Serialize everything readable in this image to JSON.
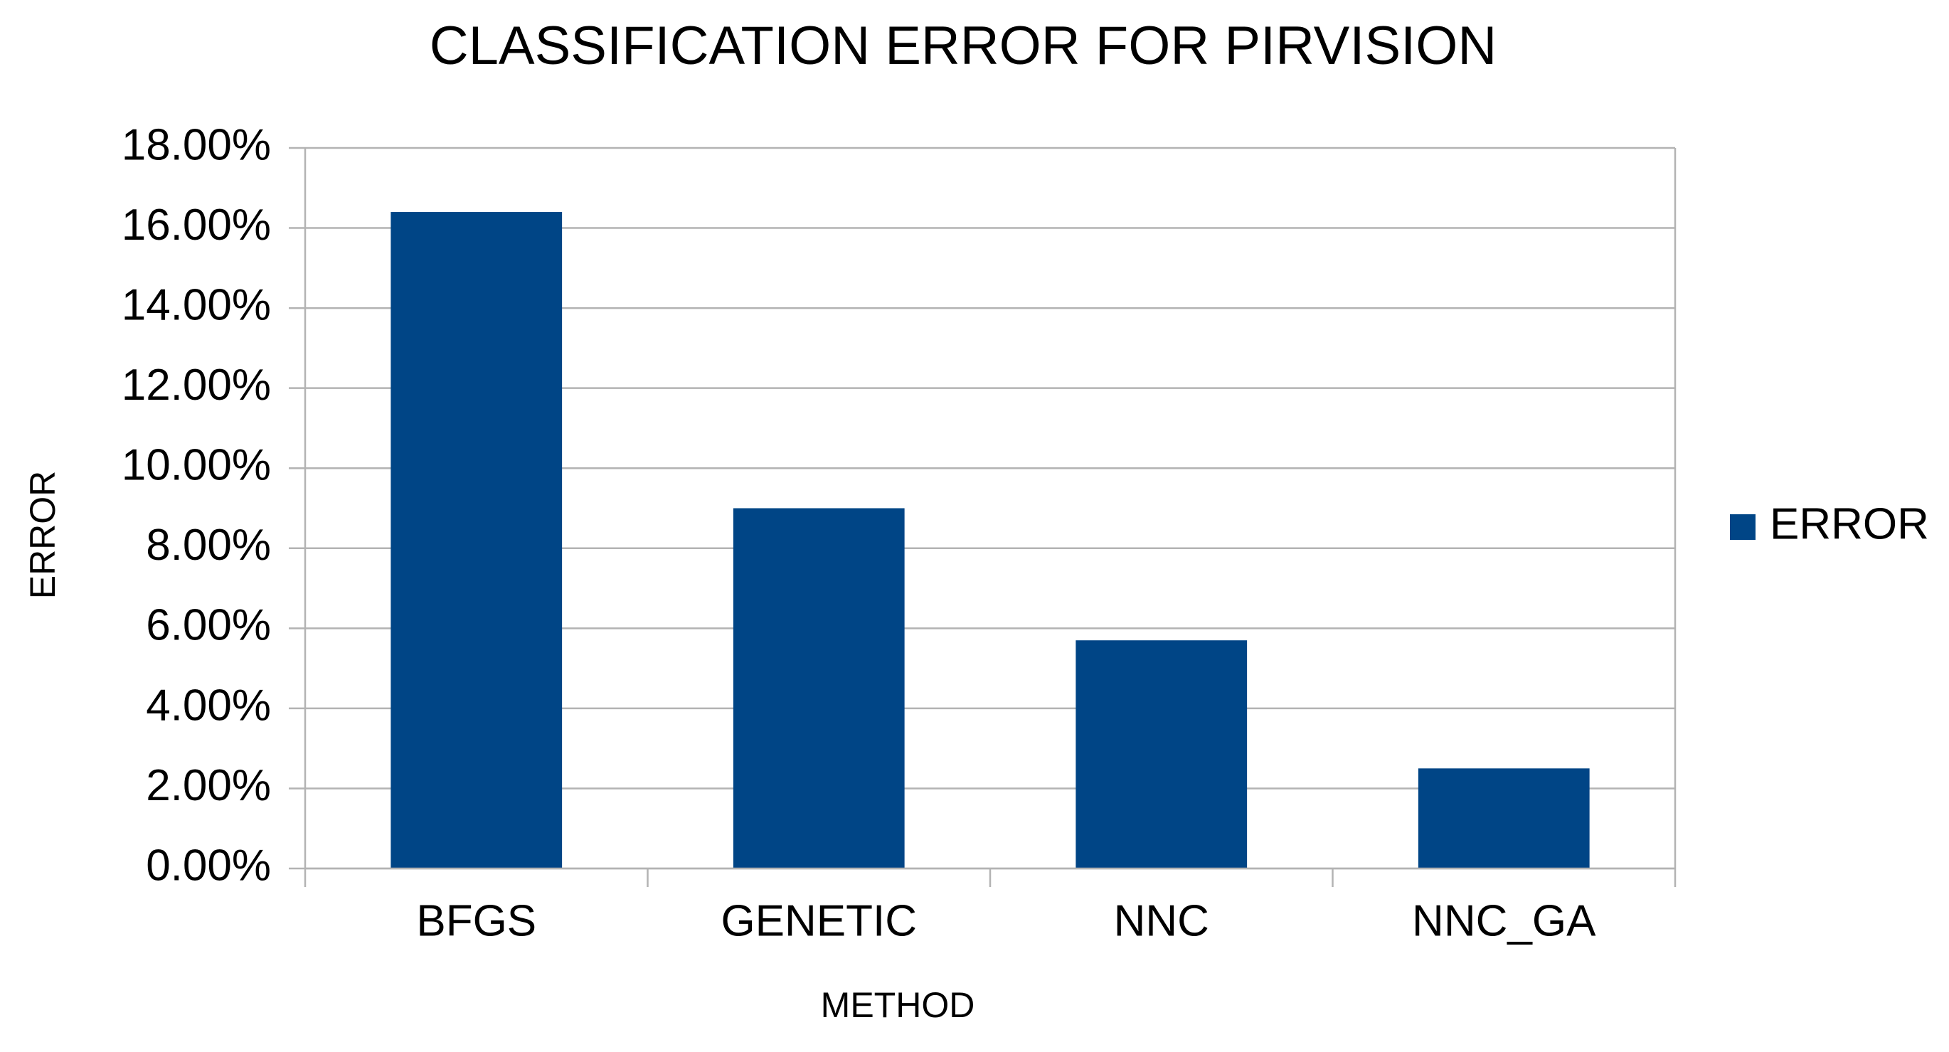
{
  "chart_data": {
    "type": "bar",
    "title": "CLASSIFICATION ERROR FOR PIRVISION",
    "x_label": "METHOD",
    "y_label": "ERROR",
    "categories": [
      "BFGS",
      "GENETIC",
      "NNC",
      "NNC_GA"
    ],
    "series": [
      {
        "name": "ERROR",
        "color": "#004586",
        "values": [
          16.4,
          9.0,
          5.7,
          2.5
        ]
      }
    ],
    "ylim": [
      0,
      18
    ],
    "yticks": [
      {
        "value": 0,
        "label": "0.00%"
      },
      {
        "value": 2,
        "label": "2.00%"
      },
      {
        "value": 4,
        "label": "4.00%"
      },
      {
        "value": 6,
        "label": "6.00%"
      },
      {
        "value": 8,
        "label": "8.00%"
      },
      {
        "value": 10,
        "label": "10.00%"
      },
      {
        "value": 12,
        "label": "12.00%"
      },
      {
        "value": 14,
        "label": "14.00%"
      },
      {
        "value": 16,
        "label": "16.00%"
      },
      {
        "value": 18,
        "label": "18.00%"
      }
    ],
    "grid": true,
    "legend": "right"
  }
}
